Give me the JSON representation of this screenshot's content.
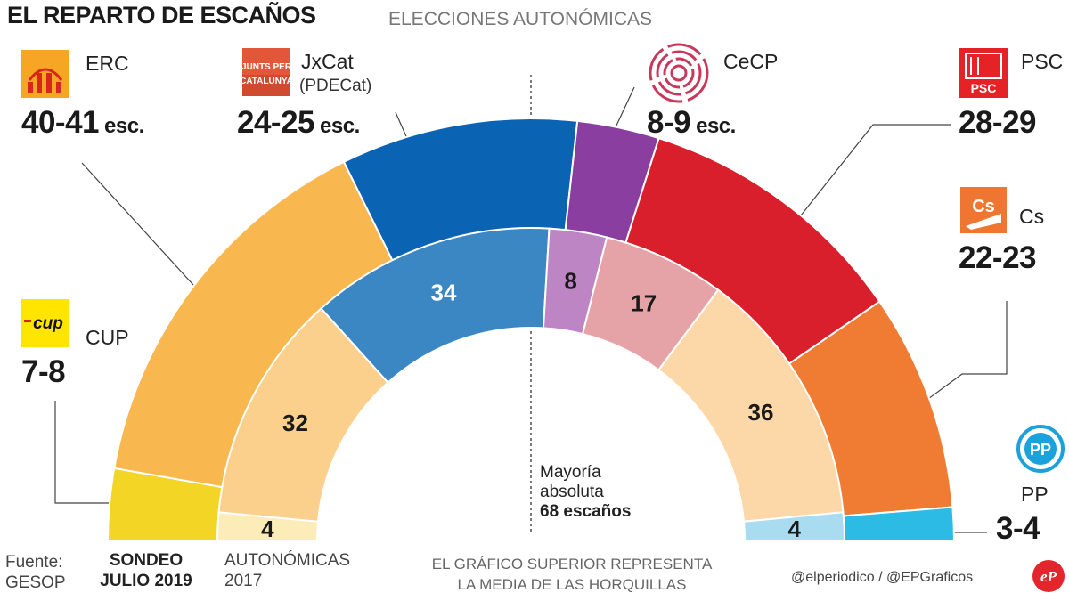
{
  "header": {
    "title": "EL REPARTO DE ESCAÑOS",
    "subtitle": "ELECCIONES AUTONÓMICAS"
  },
  "parties": [
    {
      "key": "erc",
      "name": "ERC",
      "seats": "40-41",
      "unit": "esc.",
      "icon": "erc-logo-icon"
    },
    {
      "key": "jxcat",
      "name": "JxCat",
      "sub": "(PDECat)",
      "seats": "24-25",
      "unit": "esc.",
      "icon": "junts-per-catalunya-logo-icon",
      "logo_text": [
        "JUNTS PER",
        "CATALUNYA"
      ]
    },
    {
      "key": "cecp",
      "name": "CeCP",
      "seats": "8-9",
      "unit": "esc.",
      "icon": "cecp-logo-icon"
    },
    {
      "key": "psc",
      "name": "PSC",
      "seats": "28-29",
      "icon": "psc-logo-icon",
      "logo_text": "PSC"
    },
    {
      "key": "cs",
      "name": "Cs",
      "seats": "22-23",
      "icon": "cs-logo-icon",
      "logo_text": "Cs"
    },
    {
      "key": "cup",
      "name": "CUP",
      "seats": "7-8",
      "icon": "cup-logo-icon",
      "logo_text": "cup"
    },
    {
      "key": "pp",
      "name": "PP",
      "seats": "3-4",
      "icon": "pp-logo-icon",
      "logo_text": "PP"
    }
  ],
  "majority": {
    "line1": "Mayoría",
    "line2": "absoluta",
    "line3": "68 escaños",
    "seats": 68
  },
  "footer": {
    "source_label": "Fuente:",
    "source_name": "GESOP",
    "outer_label_1": "SONDEO",
    "outer_label_2": "JULIO 2019",
    "inner_label_1": "AUTONÓMICAS",
    "inner_label_2": "2017",
    "note_1": "EL GRÁFICO SUPERIOR REPRESENTA",
    "note_2": "LA MEDIA DE LAS HORQUILLAS",
    "credit": "@elperiodico / @EPGraficos",
    "brand_logo": "el-periodico-logo-icon"
  },
  "chart_data": [
    {
      "type": "pie",
      "shape": "semicircle",
      "title": "SONDEO JULIO 2019",
      "total_seats": 135,
      "categories": [
        "CUP",
        "ERC",
        "JxCat",
        "CeCP",
        "PSC",
        "Cs",
        "PP"
      ],
      "values": [
        7.5,
        40.5,
        24.5,
        8.5,
        28.5,
        22.5,
        3.5
      ],
      "colors": [
        "#f3d525",
        "#f8b84f",
        "#0b64b3",
        "#8a3fa0",
        "#d91f2b",
        "#ef7c32",
        "#2bbbe5"
      ]
    },
    {
      "type": "pie",
      "shape": "semicircle",
      "title": "AUTONÓMICAS 2017",
      "total_seats": 135,
      "categories": [
        "CUP",
        "ERC",
        "JxCat",
        "CeCP",
        "PSC",
        "Cs",
        "PP"
      ],
      "values": [
        4,
        32,
        34,
        8,
        17,
        36,
        4
      ],
      "data_labels": [
        "4",
        "32",
        "34",
        "8",
        "17",
        "36",
        "4"
      ],
      "colors": [
        "#fbecb8",
        "#fbcf8c",
        "#3b87c4",
        "#bd85c4",
        "#e6a3a7",
        "#fcd7a7",
        "#a9dcf1"
      ]
    }
  ]
}
